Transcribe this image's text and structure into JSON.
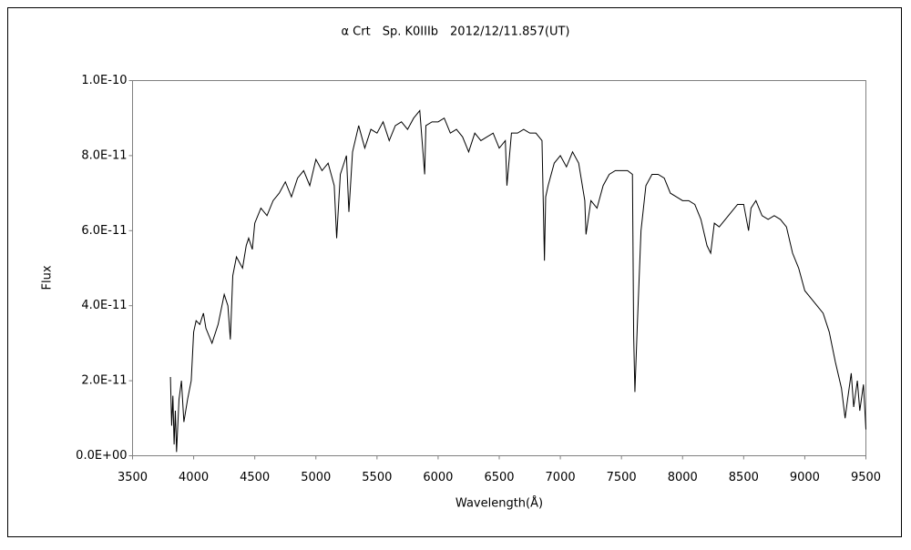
{
  "chart_data": {
    "type": "line",
    "title": "α Crt　Sp. K0IIIb　2012/12/11.857(UT)",
    "xlabel": "Wavelength(Å)",
    "ylabel": "Flux",
    "x": [
      3810,
      3820,
      3830,
      3840,
      3850,
      3860,
      3880,
      3900,
      3920,
      3950,
      3980,
      4000,
      4020,
      4050,
      4080,
      4100,
      4150,
      4200,
      4250,
      4280,
      4300,
      4320,
      4350,
      4400,
      4430,
      4450,
      4480,
      4500,
      4550,
      4600,
      4650,
      4700,
      4750,
      4800,
      4850,
      4900,
      4950,
      5000,
      5050,
      5100,
      5150,
      5170,
      5200,
      5250,
      5270,
      5300,
      5350,
      5400,
      5450,
      5500,
      5550,
      5600,
      5650,
      5700,
      5750,
      5800,
      5850,
      5890,
      5900,
      5950,
      6000,
      6050,
      6100,
      6150,
      6200,
      6250,
      6300,
      6350,
      6400,
      6450,
      6500,
      6550,
      6563,
      6600,
      6650,
      6700,
      6750,
      6800,
      6850,
      6870,
      6880,
      6900,
      6950,
      7000,
      7050,
      7100,
      7150,
      7200,
      7210,
      7250,
      7300,
      7350,
      7400,
      7450,
      7500,
      7550,
      7590,
      7600,
      7610,
      7630,
      7660,
      7700,
      7750,
      7800,
      7850,
      7900,
      7950,
      8000,
      8050,
      8100,
      8150,
      8200,
      8230,
      8260,
      8300,
      8350,
      8400,
      8450,
      8500,
      8540,
      8560,
      8600,
      8650,
      8700,
      8750,
      8800,
      8850,
      8900,
      8950,
      9000,
      9050,
      9100,
      9150,
      9200,
      9250,
      9300,
      9330,
      9350,
      9380,
      9400,
      9430,
      9450,
      9480,
      9500
    ],
    "values": [
      2.1e-11,
      8e-12,
      1.6e-11,
      3e-12,
      1.2e-11,
      1e-12,
      1.5e-11,
      2e-11,
      9e-12,
      1.5e-11,
      2e-11,
      3.3e-11,
      3.6e-11,
      3.5e-11,
      3.8e-11,
      3.4e-11,
      3e-11,
      3.5e-11,
      4.3e-11,
      4e-11,
      3.1e-11,
      4.8e-11,
      5.3e-11,
      5e-11,
      5.6e-11,
      5.8e-11,
      5.5e-11,
      6.2e-11,
      6.6e-11,
      6.4e-11,
      6.8e-11,
      7e-11,
      7.3e-11,
      6.9e-11,
      7.4e-11,
      7.6e-11,
      7.2e-11,
      7.9e-11,
      7.6e-11,
      7.8e-11,
      7.2e-11,
      5.8e-11,
      7.5e-11,
      8e-11,
      6.5e-11,
      8.1e-11,
      8.8e-11,
      8.2e-11,
      8.7e-11,
      8.6e-11,
      8.9e-11,
      8.4e-11,
      8.8e-11,
      8.9e-11,
      8.7e-11,
      9e-11,
      9.2e-11,
      7.5e-11,
      8.8e-11,
      8.9e-11,
      8.9e-11,
      9e-11,
      8.6e-11,
      8.7e-11,
      8.5e-11,
      8.1e-11,
      8.6e-11,
      8.4e-11,
      8.5e-11,
      8.6e-11,
      8.2e-11,
      8.4e-11,
      7.2e-11,
      8.6e-11,
      8.6e-11,
      8.7e-11,
      8.6e-11,
      8.6e-11,
      8.4e-11,
      5.2e-11,
      6.9e-11,
      7.2e-11,
      7.8e-11,
      8e-11,
      7.7e-11,
      8.1e-11,
      7.8e-11,
      6.8e-11,
      5.9e-11,
      6.8e-11,
      6.6e-11,
      7.2e-11,
      7.5e-11,
      7.6e-11,
      7.6e-11,
      7.6e-11,
      7.5e-11,
      3.2e-11,
      1.7e-11,
      3.5e-11,
      6e-11,
      7.2e-11,
      7.5e-11,
      7.5e-11,
      7.4e-11,
      7e-11,
      6.9e-11,
      6.8e-11,
      6.8e-11,
      6.7e-11,
      6.3e-11,
      5.6e-11,
      5.4e-11,
      6.2e-11,
      6.1e-11,
      6.3e-11,
      6.5e-11,
      6.7e-11,
      6.7e-11,
      6e-11,
      6.6e-11,
      6.8e-11,
      6.4e-11,
      6.3e-11,
      6.4e-11,
      6.3e-11,
      6.1e-11,
      5.4e-11,
      5e-11,
      4.4e-11,
      4.2e-11,
      4e-11,
      3.8e-11,
      3.3e-11,
      2.5e-11,
      1.8e-11,
      1e-11,
      1.5e-11,
      2.2e-11,
      1.3e-11,
      2e-11,
      1.2e-11,
      1.9e-11,
      7e-12
    ],
    "color": "#000000",
    "xlim": [
      3500,
      9500
    ],
    "xticks": [
      3500,
      4000,
      4500,
      5000,
      5500,
      6000,
      6500,
      7000,
      7500,
      8000,
      8500,
      9000,
      9500
    ],
    "ylim": [
      0,
      1e-10
    ],
    "yticks": [
      {
        "value": 0,
        "label": "0.0E+00"
      },
      {
        "value": 2e-11,
        "label": "2.0E-11"
      },
      {
        "value": 4e-11,
        "label": "4.0E-11"
      },
      {
        "value": 6e-11,
        "label": "6.0E-11"
      },
      {
        "value": 8e-11,
        "label": "8.0E-11"
      },
      {
        "value": 1e-10,
        "label": "1.0E-10"
      }
    ]
  }
}
